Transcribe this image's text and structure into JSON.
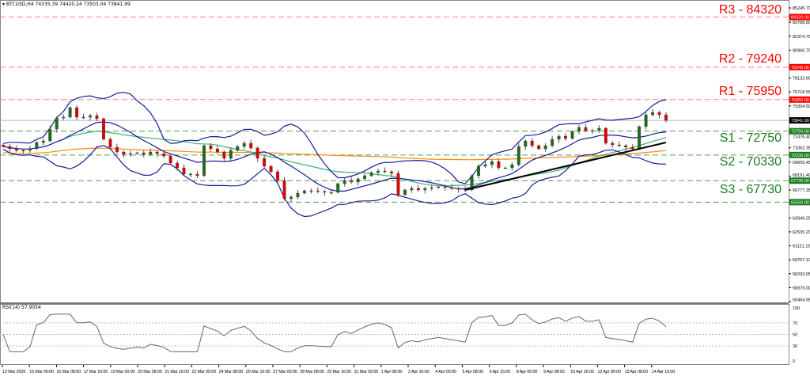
{
  "header": {
    "symbol": "BTCUSD,H4",
    "ohlc": "74335.39 74420.24 73503.04 73841.99"
  },
  "rsi": {
    "label": "RSI(14) 57.9054",
    "levels": [
      70,
      50,
      30
    ],
    "axis_labels": [
      "100",
      "70",
      "50",
      "30",
      "0"
    ]
  },
  "price_axis": {
    "labels": [
      "85245.70",
      "83788.80",
      "82374.75",
      "80960.70",
      "78132.60",
      "76718.55",
      "75304.50",
      "72476.40",
      "71062.35",
      "69605.45",
      "68191.40",
      "66777.35",
      "63949.25",
      "62535.20",
      "61121.15",
      "59707.10",
      "58293.05",
      "56879.00",
      "55464.95"
    ],
    "current_price": "73841.99"
  },
  "levels": [
    {
      "name": "R3",
      "text": "R3 - 84320",
      "price": 84320,
      "tag": "84320.00",
      "color": "#ff0000"
    },
    {
      "name": "R2",
      "text": "R2 - 79240",
      "price": 79240,
      "tag": "79240.00",
      "color": "#ff0000"
    },
    {
      "name": "R1",
      "text": "R1 - 75950",
      "price": 75950,
      "tag": "75950.00",
      "color": "#ff0000"
    },
    {
      "name": "S1",
      "text": "S1 - 72750",
      "price": 72750,
      "tag": "72750.00",
      "color": "#1e7b1e"
    },
    {
      "name": "S2",
      "text": "S2 - 70330",
      "price": 70330,
      "tag": "70330.00",
      "color": "#1e7b1e"
    },
    {
      "name": "S3",
      "text": "S3 - 67730",
      "price": 67730,
      "tag": "67730.00",
      "color": "#1e7b1e"
    },
    {
      "name": "S4",
      "text": "",
      "price": 65550,
      "tag": "65550.00",
      "color": "#1e7b1e"
    }
  ],
  "time_axis": [
    "13 Mar 2026",
    "15 Mar 00:00",
    "16 Mar 08:00",
    "17 Mar 16:00",
    "19 Mar 00:00",
    "20 Mar 08:00",
    "21 Mar 16:00",
    "23 Mar 00:00",
    "24 Mar 08:00",
    "25 Mar 16:00",
    "27 Mar 00:00",
    "28 Mar 08:00",
    "29 Mar 16:00",
    "31 Mar 00:00",
    "1 Apr 08:00",
    "2 Apr 16:00",
    "4 Apr 00:00",
    "5 Apr 08:00",
    "6 Apr 16:00",
    "8 Apr 00:00",
    "9 Apr 08:00",
    "10 Apr 16:00",
    "12 Apr 00:00",
    "13 Apr 08:00",
    "14 Apr 16:00"
  ],
  "colors": {
    "bull": "#1e6b1e",
    "bear": "#e00000",
    "bands": "#1a1a9a",
    "ma_slow": "#ff8c00",
    "ma_fast": "#3cb371",
    "trendline": "#000000",
    "current_line": "#a8b8c8"
  },
  "chart_data": {
    "type": "candlestick",
    "ylim": [
      55464.95,
      85245.7
    ],
    "closes": [
      71198,
      70957,
      70797,
      70797,
      70957,
      71600,
      71760,
      72964,
      74088,
      74168,
      75131,
      74168,
      74168,
      74329,
      74008,
      71921,
      71118,
      70636,
      70395,
      70476,
      70556,
      70395,
      70636,
      70476,
      70235,
      69513,
      69031,
      68389,
      68389,
      68228,
      71279,
      70957,
      70636,
      69994,
      70797,
      71198,
      71519,
      71038,
      69994,
      69192,
      68630,
      67747,
      65901,
      66061,
      66462,
      66703,
      66703,
      66623,
      66543,
      66543,
      67426,
      67747,
      67587,
      67907,
      68228,
      68549,
      68710,
      68630,
      68469,
      66302,
      66783,
      66944,
      66783,
      66944,
      67024,
      67105,
      67024,
      66944,
      66864,
      66783,
      68228,
      69192,
      69352,
      69673,
      69031,
      69031,
      69352,
      71198,
      71760,
      71279,
      70957,
      71279,
      71921,
      72242,
      72001,
      72723,
      73125,
      72804,
      72804,
      73044,
      71519,
      71359,
      71279,
      71118,
      70957,
      73205,
      74409,
      74650,
      74409,
      73841.99
    ],
    "trendline": {
      "from_index": 69,
      "from_price": 66783,
      "to_index": 99,
      "to_price": 71600
    }
  }
}
